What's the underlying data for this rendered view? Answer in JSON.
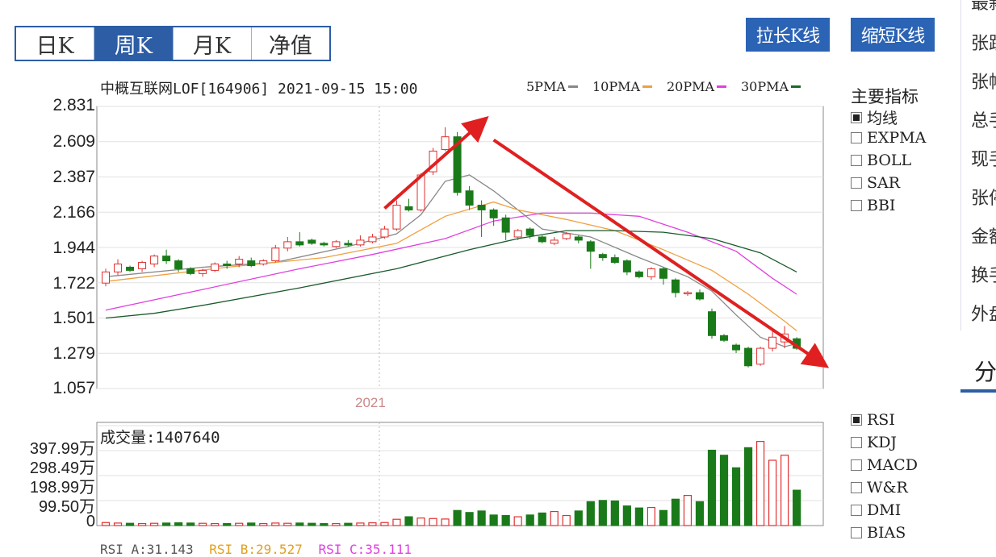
{
  "tabs": [
    {
      "label": "日K",
      "active": false
    },
    {
      "label": "周K",
      "active": true
    },
    {
      "label": "月K",
      "active": false
    },
    {
      "label": "净值",
      "active": false
    }
  ],
  "toolbar": {
    "longer_label": "拉长K线",
    "shorter_label": "缩短K线"
  },
  "chart_header": {
    "title": "中概互联网LOF[164906] 2021-09-15 15:00"
  },
  "ma_legend": [
    {
      "label": "5PMA",
      "color": "#888888"
    },
    {
      "label": "10PMA",
      "color": "#f0a040"
    },
    {
      "label": "20PMA",
      "color": "#e040e0"
    },
    {
      "label": "30PMA",
      "color": "#1a6a2a"
    }
  ],
  "indicator_panel": {
    "title": "主要指标",
    "items": [
      {
        "label": "均线",
        "checked": true
      },
      {
        "label": "EXPMA",
        "checked": false
      },
      {
        "label": "BOLL",
        "checked": false
      },
      {
        "label": "SAR",
        "checked": false
      },
      {
        "label": "BBI",
        "checked": false
      }
    ]
  },
  "sub_indicators": [
    {
      "label": "RSI",
      "checked": true
    },
    {
      "label": "KDJ",
      "checked": false
    },
    {
      "label": "MACD",
      "checked": false
    },
    {
      "label": "W&R",
      "checked": false
    },
    {
      "label": "DMI",
      "checked": false
    },
    {
      "label": "BIAS",
      "checked": false
    }
  ],
  "volume_panel": {
    "label": "成交量:1407640"
  },
  "rsi_line": [
    {
      "text": "RSI A:31.143",
      "color": "#555555"
    },
    {
      "text": "RSI B:29.527",
      "color": "#e0a020"
    },
    {
      "text": "RSI C:35.111",
      "color": "#e040e0"
    }
  ],
  "side_panel": {
    "items": [
      "最新",
      "张跌",
      "张幅",
      "总手",
      "现手",
      "张停",
      "金额",
      "换手",
      "外盘"
    ],
    "tab_label": "分"
  },
  "colors": {
    "up": "#e03030",
    "down": "#1a7a1a",
    "arrow": "#e02020"
  },
  "chart_data": {
    "type": "candlestick",
    "title": "中概互联网LOF[164906] 2021-09-15 15:00",
    "ylim": [
      1.057,
      2.831
    ],
    "yticks": [
      2.831,
      2.609,
      2.387,
      2.166,
      1.944,
      1.722,
      1.501,
      1.279,
      1.057
    ],
    "xtick_label": "2021",
    "xtick_index": 24,
    "candles": [
      {
        "o": 1.72,
        "c": 1.79,
        "h": 1.81,
        "l": 1.7,
        "v": 12
      },
      {
        "o": 1.79,
        "c": 1.84,
        "h": 1.87,
        "l": 1.77,
        "v": 10
      },
      {
        "o": 1.82,
        "c": 1.8,
        "h": 1.83,
        "l": 1.79,
        "v": 9
      },
      {
        "o": 1.81,
        "c": 1.85,
        "h": 1.86,
        "l": 1.79,
        "v": 8
      },
      {
        "o": 1.84,
        "c": 1.89,
        "h": 1.9,
        "l": 1.82,
        "v": 9
      },
      {
        "o": 1.89,
        "c": 1.86,
        "h": 1.93,
        "l": 1.84,
        "v": 10
      },
      {
        "o": 1.86,
        "c": 1.81,
        "h": 1.87,
        "l": 1.79,
        "v": 11
      },
      {
        "o": 1.81,
        "c": 1.78,
        "h": 1.82,
        "l": 1.77,
        "v": 10
      },
      {
        "o": 1.78,
        "c": 1.8,
        "h": 1.81,
        "l": 1.76,
        "v": 9
      },
      {
        "o": 1.8,
        "c": 1.84,
        "h": 1.85,
        "l": 1.79,
        "v": 8
      },
      {
        "o": 1.84,
        "c": 1.83,
        "h": 1.86,
        "l": 1.81,
        "v": 8
      },
      {
        "o": 1.84,
        "c": 1.87,
        "h": 1.89,
        "l": 1.82,
        "v": 9
      },
      {
        "o": 1.86,
        "c": 1.83,
        "h": 1.88,
        "l": 1.82,
        "v": 10
      },
      {
        "o": 1.84,
        "c": 1.86,
        "h": 1.87,
        "l": 1.83,
        "v": 8
      },
      {
        "o": 1.86,
        "c": 1.94,
        "h": 1.96,
        "l": 1.85,
        "v": 10
      },
      {
        "o": 1.94,
        "c": 1.98,
        "h": 2.01,
        "l": 1.92,
        "v": 9
      },
      {
        "o": 1.98,
        "c": 1.96,
        "h": 2.04,
        "l": 1.95,
        "v": 10
      },
      {
        "o": 1.99,
        "c": 1.97,
        "h": 2.0,
        "l": 1.96,
        "v": 9
      },
      {
        "o": 1.97,
        "c": 1.96,
        "h": 1.98,
        "l": 1.95,
        "v": 8
      },
      {
        "o": 1.95,
        "c": 1.98,
        "h": 1.99,
        "l": 1.94,
        "v": 8
      },
      {
        "o": 1.97,
        "c": 1.96,
        "h": 1.99,
        "l": 1.95,
        "v": 9
      },
      {
        "o": 1.96,
        "c": 1.99,
        "h": 2.02,
        "l": 1.95,
        "v": 10
      },
      {
        "o": 1.98,
        "c": 2.01,
        "h": 2.03,
        "l": 1.97,
        "v": 11
      },
      {
        "o": 2.01,
        "c": 2.06,
        "h": 2.08,
        "l": 2.0,
        "v": 12
      },
      {
        "o": 2.06,
        "c": 2.21,
        "h": 2.24,
        "l": 2.05,
        "v": 25
      },
      {
        "o": 2.2,
        "c": 2.18,
        "h": 2.25,
        "l": 2.17,
        "v": 35
      },
      {
        "o": 2.18,
        "c": 2.4,
        "h": 2.41,
        "l": 2.17,
        "v": 30
      },
      {
        "o": 2.42,
        "c": 2.55,
        "h": 2.57,
        "l": 2.4,
        "v": 28
      },
      {
        "o": 2.56,
        "c": 2.64,
        "h": 2.7,
        "l": 2.55,
        "v": 26
      },
      {
        "o": 2.64,
        "c": 2.29,
        "h": 2.67,
        "l": 2.27,
        "v": 60
      },
      {
        "o": 2.3,
        "c": 2.21,
        "h": 2.33,
        "l": 2.18,
        "v": 52
      },
      {
        "o": 2.21,
        "c": 2.18,
        "h": 2.24,
        "l": 2.01,
        "v": 58
      },
      {
        "o": 2.18,
        "c": 2.13,
        "h": 2.19,
        "l": 2.08,
        "v": 42
      },
      {
        "o": 2.13,
        "c": 2.04,
        "h": 2.15,
        "l": 1.99,
        "v": 40
      },
      {
        "o": 2.01,
        "c": 2.05,
        "h": 2.06,
        "l": 1.99,
        "v": 35
      },
      {
        "o": 2.06,
        "c": 2.02,
        "h": 2.07,
        "l": 2.0,
        "v": 42
      },
      {
        "o": 2.01,
        "c": 1.98,
        "h": 2.02,
        "l": 1.97,
        "v": 50
      },
      {
        "o": 1.97,
        "c": 1.99,
        "h": 2.01,
        "l": 1.96,
        "v": 56
      },
      {
        "o": 2.0,
        "c": 2.03,
        "h": 2.04,
        "l": 1.99,
        "v": 40
      },
      {
        "o": 2.01,
        "c": 1.99,
        "h": 2.02,
        "l": 1.97,
        "v": 58
      },
      {
        "o": 1.98,
        "c": 1.92,
        "h": 1.99,
        "l": 1.81,
        "v": 95
      },
      {
        "o": 1.9,
        "c": 1.88,
        "h": 1.91,
        "l": 1.86,
        "v": 100
      },
      {
        "o": 1.88,
        "c": 1.85,
        "h": 1.9,
        "l": 1.84,
        "v": 98
      },
      {
        "o": 1.86,
        "c": 1.79,
        "h": 1.87,
        "l": 1.77,
        "v": 78
      },
      {
        "o": 1.79,
        "c": 1.76,
        "h": 1.8,
        "l": 1.75,
        "v": 70
      },
      {
        "o": 1.76,
        "c": 1.81,
        "h": 1.82,
        "l": 1.74,
        "v": 72
      },
      {
        "o": 1.81,
        "c": 1.75,
        "h": 1.82,
        "l": 1.71,
        "v": 60
      },
      {
        "o": 1.74,
        "c": 1.66,
        "h": 1.75,
        "l": 1.63,
        "v": 105
      },
      {
        "o": 1.66,
        "c": 1.66,
        "h": 1.67,
        "l": 1.64,
        "v": 120
      },
      {
        "o": 1.66,
        "c": 1.62,
        "h": 1.68,
        "l": 1.61,
        "v": 95
      },
      {
        "o": 1.54,
        "c": 1.39,
        "h": 1.56,
        "l": 1.37,
        "v": 300
      },
      {
        "o": 1.39,
        "c": 1.36,
        "h": 1.4,
        "l": 1.35,
        "v": 280
      },
      {
        "o": 1.33,
        "c": 1.3,
        "h": 1.34,
        "l": 1.28,
        "v": 230
      },
      {
        "o": 1.31,
        "c": 1.2,
        "h": 1.32,
        "l": 1.19,
        "v": 310
      },
      {
        "o": 1.21,
        "c": 1.31,
        "h": 1.32,
        "l": 1.2,
        "v": 335
      },
      {
        "o": 1.31,
        "c": 1.38,
        "h": 1.42,
        "l": 1.29,
        "v": 260
      },
      {
        "o": 1.35,
        "c": 1.4,
        "h": 1.45,
        "l": 1.31,
        "v": 280
      },
      {
        "o": 1.37,
        "c": 1.31,
        "h": 1.38,
        "l": 1.3,
        "v": 140.76
      }
    ],
    "ma": [
      {
        "name": "5PMA",
        "color": "#888888",
        "points": [
          [
            0,
            1.76
          ],
          [
            8,
            1.82
          ],
          [
            14,
            1.85
          ],
          [
            20,
            1.95
          ],
          [
            24,
            2.03
          ],
          [
            26,
            2.15
          ],
          [
            28,
            2.36
          ],
          [
            30,
            2.4
          ],
          [
            32,
            2.3
          ],
          [
            34,
            2.18
          ],
          [
            36,
            2.06
          ],
          [
            40,
            2.01
          ],
          [
            44,
            1.88
          ],
          [
            48,
            1.76
          ],
          [
            50,
            1.67
          ],
          [
            52,
            1.52
          ],
          [
            54,
            1.38
          ],
          [
            56,
            1.32
          ],
          [
            57,
            1.34
          ]
        ]
      },
      {
        "name": "10PMA",
        "color": "#f0a040",
        "points": [
          [
            0,
            1.73
          ],
          [
            10,
            1.82
          ],
          [
            18,
            1.88
          ],
          [
            24,
            1.97
          ],
          [
            28,
            2.14
          ],
          [
            32,
            2.23
          ],
          [
            34,
            2.18
          ],
          [
            38,
            2.12
          ],
          [
            42,
            2.05
          ],
          [
            46,
            1.93
          ],
          [
            50,
            1.8
          ],
          [
            53,
            1.65
          ],
          [
            56,
            1.48
          ],
          [
            57,
            1.42
          ]
        ]
      },
      {
        "name": "20PMA",
        "color": "#e040e0",
        "points": [
          [
            0,
            1.55
          ],
          [
            8,
            1.68
          ],
          [
            16,
            1.81
          ],
          [
            22,
            1.9
          ],
          [
            28,
            2.0
          ],
          [
            32,
            2.11
          ],
          [
            36,
            2.16
          ],
          [
            40,
            2.16
          ],
          [
            44,
            2.14
          ],
          [
            48,
            2.04
          ],
          [
            52,
            1.92
          ],
          [
            55,
            1.75
          ],
          [
            57,
            1.65
          ]
        ]
      },
      {
        "name": "30PMA",
        "color": "#1a5a2a",
        "points": [
          [
            0,
            1.5
          ],
          [
            4,
            1.53
          ],
          [
            8,
            1.58
          ],
          [
            16,
            1.69
          ],
          [
            24,
            1.81
          ],
          [
            30,
            1.93
          ],
          [
            34,
            2.0
          ],
          [
            38,
            2.05
          ],
          [
            42,
            2.05
          ],
          [
            46,
            2.04
          ],
          [
            50,
            2.0
          ],
          [
            54,
            1.91
          ],
          [
            57,
            1.79
          ]
        ]
      }
    ],
    "volume_yticks": [
      "397.99万",
      "298.49万",
      "198.99万",
      "99.50万",
      "0"
    ],
    "volume_ylim": [
      0,
      397.99
    ],
    "volume_unit": "万",
    "trend_arrows": [
      {
        "from": [
          23,
          2.19
        ],
        "to": [
          31,
          2.73
        ]
      },
      {
        "from": [
          32,
          2.62
        ],
        "to": [
          59,
          1.22
        ]
      }
    ]
  }
}
